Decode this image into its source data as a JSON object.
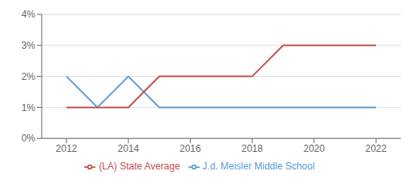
{
  "chart_data": {
    "type": "line",
    "x": [
      2012,
      2013,
      2014,
      2015,
      2016,
      2017,
      2018,
      2019,
      2020,
      2021,
      2022
    ],
    "series": [
      {
        "name": "J.d. Meisler Middle School",
        "color": "#5b9bd5",
        "values": [
          2,
          1,
          2,
          1,
          1,
          1,
          1,
          1,
          1,
          1,
          1
        ]
      },
      {
        "name": "(LA) State Average",
        "color": "#c0504d",
        "values": [
          1,
          1,
          1,
          2,
          2,
          2,
          2,
          3,
          3,
          3,
          3
        ]
      }
    ],
    "xlim": [
      2011.2,
      2022.8
    ],
    "xticks": [
      2012,
      2014,
      2016,
      2018,
      2020,
      2022
    ],
    "ylim": [
      0,
      4
    ],
    "yticks": [
      {
        "value": 0,
        "label": "0%"
      },
      {
        "value": 1,
        "label": "1%"
      },
      {
        "value": 2,
        "label": "2%"
      },
      {
        "value": 3,
        "label": "3%"
      },
      {
        "value": 4,
        "label": "4%"
      }
    ],
    "grid": "y",
    "legend": "bottom"
  }
}
